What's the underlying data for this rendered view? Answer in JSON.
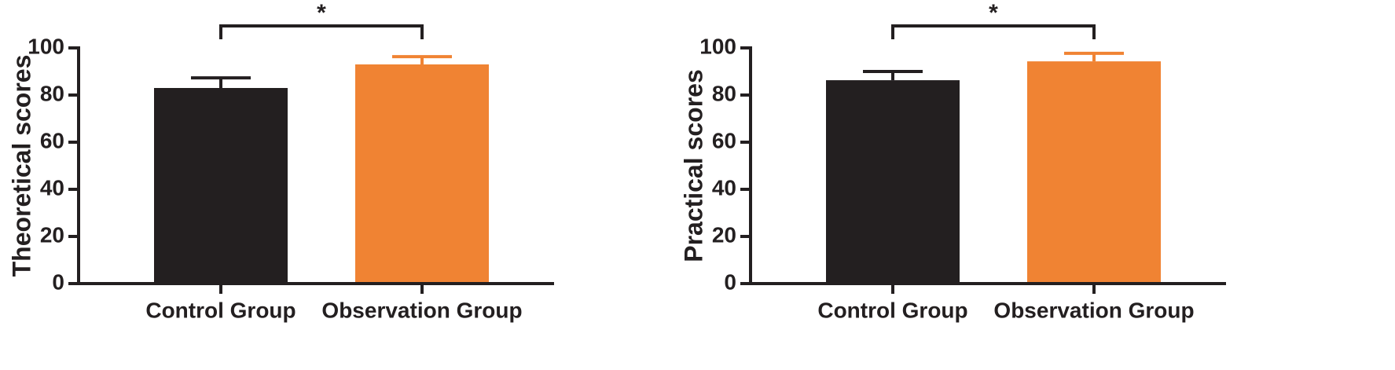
{
  "chart_data": [
    {
      "type": "bar",
      "ylabel": "Theoretical scores",
      "categories": [
        "Control Group",
        "Observation Group"
      ],
      "values": [
        83,
        93
      ],
      "errors": [
        4.3,
        3.3
      ],
      "colors": [
        "#231f20",
        "#f08333"
      ],
      "ylim": [
        0,
        100
      ],
      "yticks": [
        0,
        20,
        40,
        60,
        80,
        100
      ],
      "annotation": "*"
    },
    {
      "type": "bar",
      "ylabel": "Practical scores",
      "categories": [
        "Control Group",
        "Observation Group"
      ],
      "values": [
        86.3,
        94.3
      ],
      "errors": [
        3.7,
        3.4
      ],
      "colors": [
        "#231f20",
        "#f08333"
      ],
      "ylim": [
        0,
        100
      ],
      "yticks": [
        0,
        20,
        40,
        60,
        80,
        100
      ],
      "annotation": "*"
    }
  ]
}
